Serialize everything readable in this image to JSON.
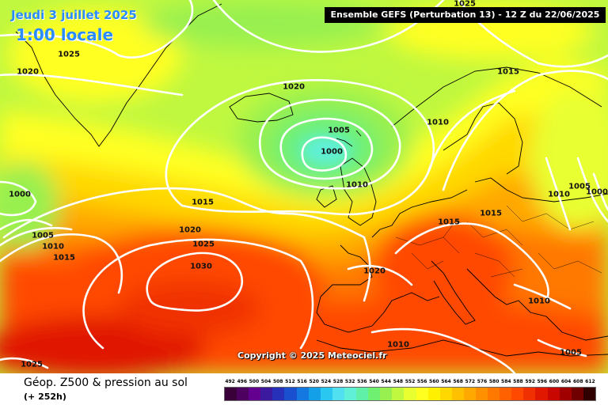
{
  "header": {
    "date": "Jeudi 3 juillet 2025",
    "local_time": "1:00 locale",
    "model_run": "Ensemble GEFS  (Perturbation 13)  -  12 Z du 22/06/2025"
  },
  "copyright": "Copyright © 2025 Meteociel.fr",
  "footer": {
    "title": "Géop. Z500 & pression au sol",
    "forecast_hour": "(+ 252h)"
  },
  "isobar_labels": [
    "1025",
    "1025",
    "1020",
    "1020",
    "1015",
    "1010",
    "1005",
    "1000",
    "1010",
    "1015",
    "1000",
    "1005",
    "1010",
    "1015",
    "1015",
    "1020",
    "1025",
    "1030",
    "1020",
    "1015",
    "1010",
    "1010",
    "1005",
    "1000",
    "1010",
    "1005",
    "1025"
  ],
  "legend": {
    "values": [
      "492",
      "496",
      "500",
      "504",
      "508",
      "512",
      "516",
      "520",
      "524",
      "528",
      "532",
      "536",
      "540",
      "544",
      "548",
      "552",
      "556",
      "560",
      "564",
      "568",
      "572",
      "576",
      "580",
      "584",
      "588",
      "592",
      "596",
      "600",
      "604",
      "608",
      "612"
    ],
    "colors": [
      "#3a003a",
      "#4e0060",
      "#640090",
      "#3c1aa0",
      "#2630b8",
      "#1a50d0",
      "#1478e0",
      "#14a0e8",
      "#2ac8f0",
      "#50e0f0",
      "#60f0d8",
      "#60f0a8",
      "#70f070",
      "#98f050",
      "#c0f840",
      "#e8ff30",
      "#ffff20",
      "#fff000",
      "#ffd800",
      "#ffc000",
      "#ffa800",
      "#ff9000",
      "#ff7800",
      "#ff6000",
      "#ff4800",
      "#f03000",
      "#e01800",
      "#c80800",
      "#a00000",
      "#700000",
      "#300000"
    ]
  }
}
